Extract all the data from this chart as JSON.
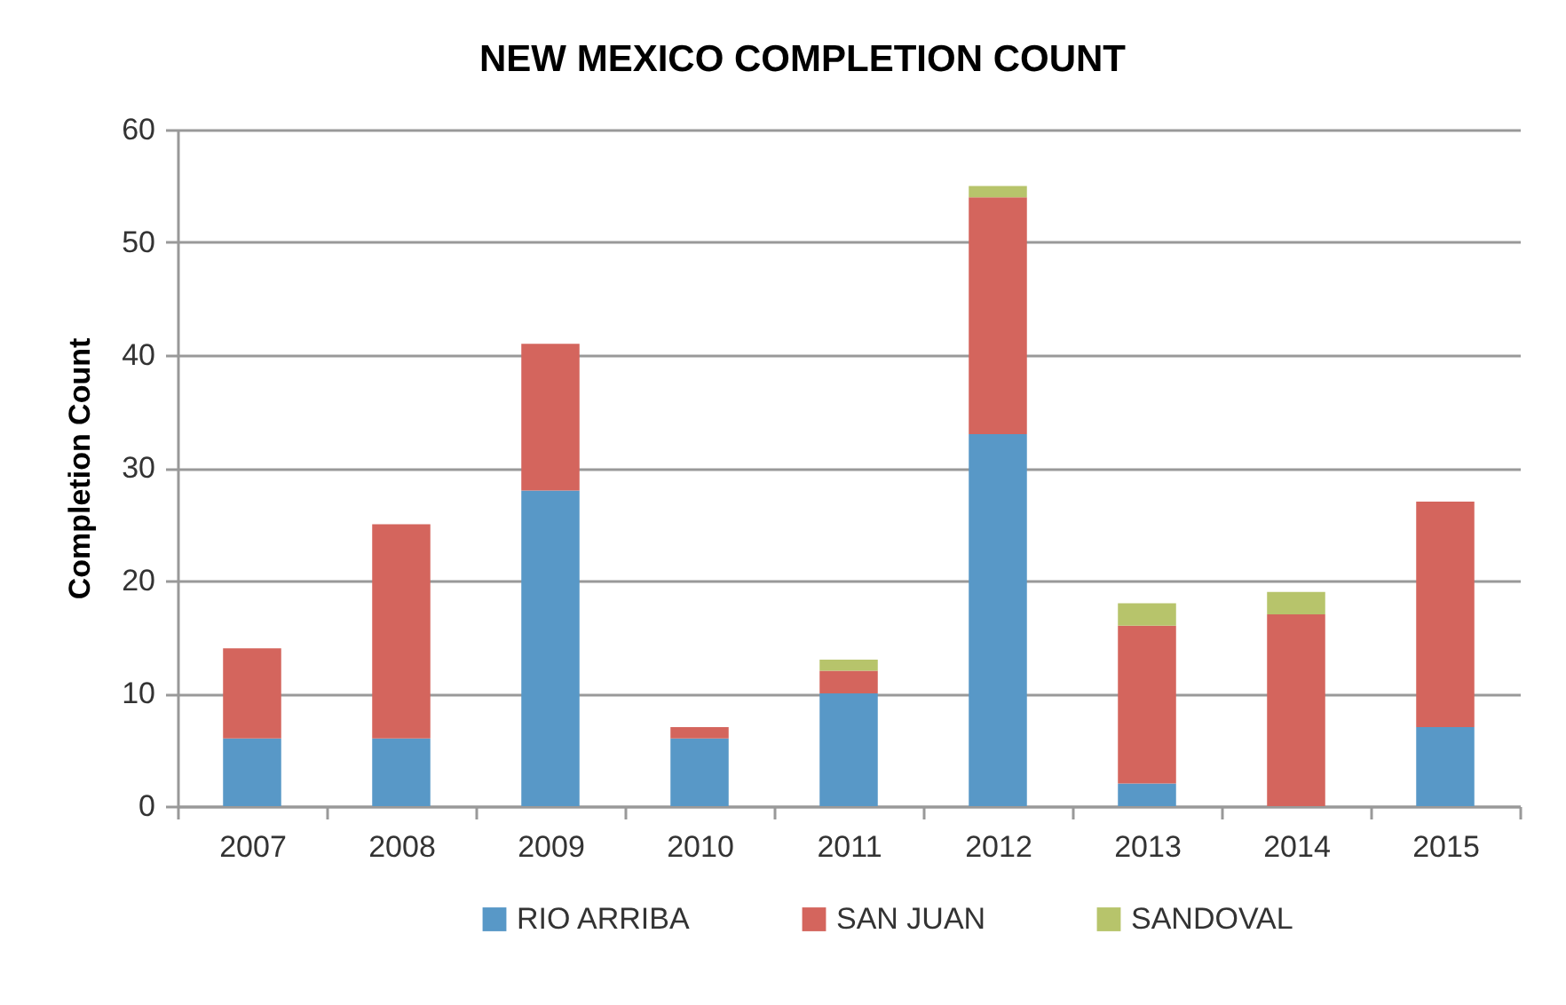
{
  "chart_data": {
    "type": "bar",
    "title": "NEW MEXICO COMPLETION COUNT",
    "ylabel": "Completion Count",
    "categories": [
      "2007",
      "2008",
      "2009",
      "2010",
      "2011",
      "2012",
      "2013",
      "2014",
      "2015"
    ],
    "series": [
      {
        "name": "RIO ARRIBA",
        "color": "#5898c7",
        "values": [
          6,
          6,
          28,
          6,
          10,
          33,
          2,
          0,
          7
        ]
      },
      {
        "name": "SAN JUAN",
        "color": "#d4655d",
        "values": [
          8,
          19,
          13,
          1,
          2,
          21,
          14,
          17,
          20
        ]
      },
      {
        "name": "SANDOVAL",
        "color": "#b7c46b",
        "values": [
          0,
          0,
          0,
          0,
          1,
          1,
          2,
          2,
          0
        ]
      }
    ],
    "stacked": true,
    "ylim": [
      0,
      60
    ],
    "yticks": [
      0,
      10,
      20,
      30,
      40,
      50,
      60
    ],
    "grid": "y",
    "legend": "bottom"
  }
}
